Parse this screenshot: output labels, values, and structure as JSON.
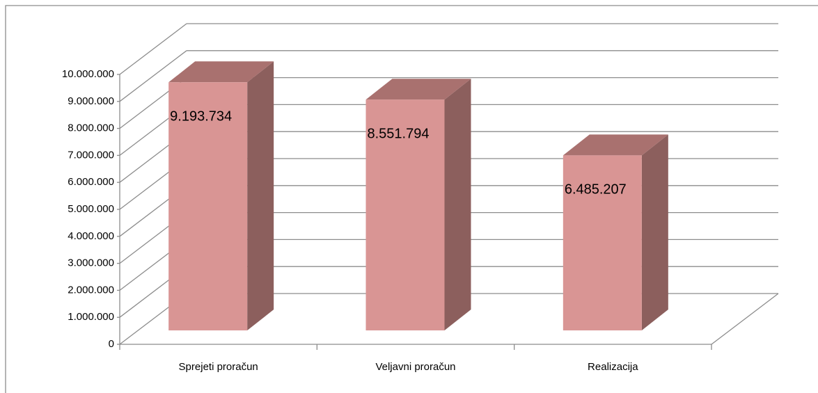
{
  "chart_data": {
    "type": "bar3d",
    "categories": [
      "Sprejeti proračun",
      "Veljavni proračun",
      "Realizacija"
    ],
    "values": [
      9193734,
      8551794,
      6485207
    ],
    "value_labels": [
      "9.193.734",
      "8.551.794",
      "6.485.207"
    ],
    "color": "#d99594",
    "ylim": [
      0,
      10000000
    ],
    "yticks": [
      0,
      {
        "value": 1000000,
        "label": "1.000.000"
      },
      {
        "value": 2000000,
        "label": "2.000.000"
      },
      {
        "value": 3000000,
        "label": "3.000.000"
      },
      {
        "value": 4000000,
        "label": "4.000.000"
      },
      {
        "value": 5000000,
        "label": "5.000.000"
      },
      {
        "value": 6000000,
        "label": "6.000.000"
      },
      {
        "value": 7000000,
        "label": "7.000.000"
      },
      {
        "value": 8000000,
        "label": "8.000.000"
      },
      {
        "value": 9000000,
        "label": "9.000.000"
      },
      {
        "value": 10000000,
        "label": "10.000.000"
      }
    ],
    "grid": true
  }
}
